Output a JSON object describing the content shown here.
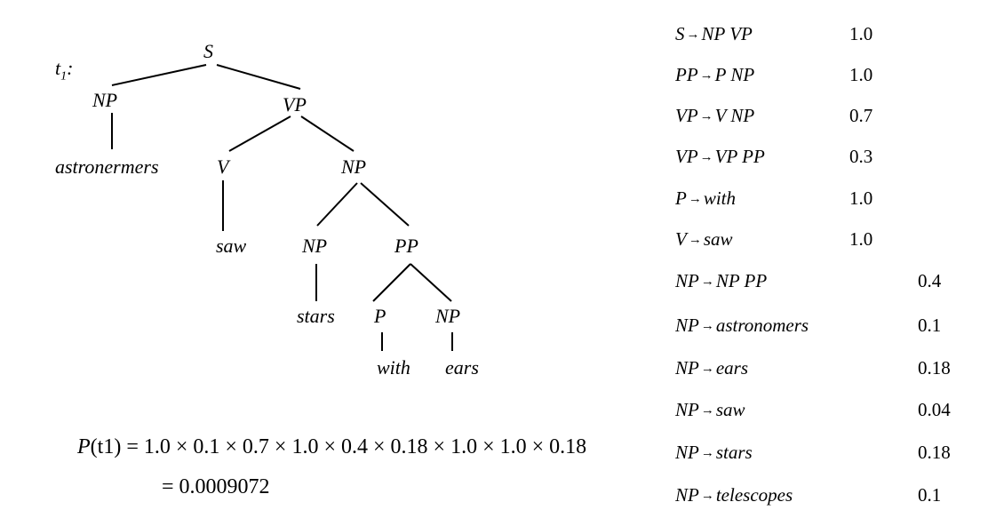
{
  "tree": {
    "label_name": "t",
    "label_sub": "1",
    "label_colon": ":",
    "nodes": {
      "s": "S",
      "np_left": "NP",
      "vp": "VP",
      "astronermers": "astronermers",
      "v": "V",
      "np_obj": "NP",
      "saw": "saw",
      "np_inner": "NP",
      "pp": "PP",
      "stars": "stars",
      "p": "P",
      "np_ears": "NP",
      "with": "with",
      "ears": "ears"
    }
  },
  "formula": {
    "line1_lhs_p": "P",
    "line1_lhs_arg": "(t1)",
    "line1_rhs": "= 1.0 × 0.1 × 0.7 × 1.0 × 0.4 × 0.18 × 1.0 × 1.0 × 0.18",
    "line2": "= 0.0009072"
  },
  "rules": [
    {
      "lhs": "S",
      "rhs": "NP VP",
      "prob": "1.0"
    },
    {
      "lhs": "PP",
      "rhs": "P NP",
      "prob": "1.0"
    },
    {
      "lhs": "VP",
      "rhs": "V NP",
      "prob": "0.7"
    },
    {
      "lhs": "VP",
      "rhs": "VP PP",
      "prob": "0.3"
    },
    {
      "lhs": "P",
      "rhs": "with",
      "prob": "1.0"
    },
    {
      "lhs": "V",
      "rhs": "saw",
      "prob": "1.0"
    },
    {
      "lhs": "NP",
      "rhs": "NP PP",
      "prob": "0.4"
    },
    {
      "lhs": "NP",
      "rhs": "astronomers",
      "prob": "0.1"
    },
    {
      "lhs": "NP",
      "rhs": "ears",
      "prob": "0.18"
    },
    {
      "lhs": "NP",
      "rhs": "saw",
      "prob": "0.04"
    },
    {
      "lhs": "NP",
      "rhs": "stars",
      "prob": "0.18"
    },
    {
      "lhs": "NP",
      "rhs": "telescopes",
      "prob": "0.1"
    }
  ]
}
